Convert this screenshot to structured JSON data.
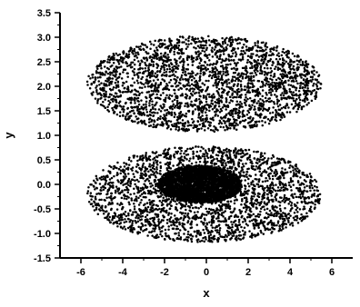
{
  "chart_data": {
    "type": "scatter",
    "title": "",
    "xlabel": "x",
    "ylabel": "y",
    "xlim": [
      -7,
      7
    ],
    "ylim": [
      -1.5,
      3.5
    ],
    "x_ticks": [
      -6,
      -4,
      -2,
      0,
      2,
      4,
      6
    ],
    "y_ticks": [
      -1.5,
      -1.0,
      -0.5,
      0.0,
      0.5,
      1.0,
      1.5,
      2.0,
      2.5,
      3.0,
      3.5
    ],
    "x_tick_labels": [
      "-6",
      "-4",
      "-2",
      "0",
      "2",
      "4",
      "6"
    ],
    "y_tick_labels": [
      "-1.5",
      "-1.0",
      "-0.5",
      "0.0",
      "0.5",
      "1.0",
      "1.5",
      "2.0",
      "2.5",
      "3.0",
      "3.5"
    ],
    "grid": false,
    "legend": "none",
    "marker_color": "#000000",
    "regions": [
      {
        "shape": "filled-ellipse",
        "center": [
          -0.1,
          2.05
        ],
        "semi_axes": [
          5.6,
          0.98
        ]
      },
      {
        "shape": "filled-ellipse",
        "center": [
          -0.1,
          -0.2
        ],
        "semi_axes": [
          5.6,
          0.98
        ]
      },
      {
        "shape": "dense-core",
        "center": [
          -0.3,
          0.0
        ],
        "semi_axes": [
          2.0,
          0.38
        ]
      }
    ]
  }
}
